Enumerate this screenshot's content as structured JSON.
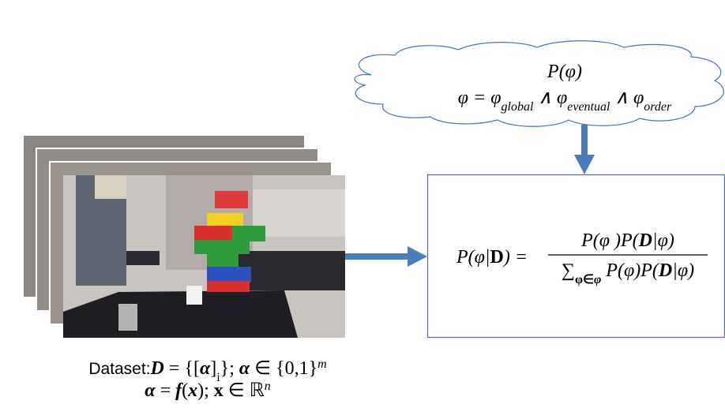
{
  "cloud": {
    "line1": "P(φ)",
    "line2": [
      "φ = φ",
      "global",
      " ∧ φ",
      "eventual",
      " ∧ φ",
      "order"
    ]
  },
  "posterior": {
    "lhs": [
      "P(φ|",
      "D",
      ") ="
    ],
    "numerator": [
      "P(φ )P(",
      "D",
      "|φ)"
    ],
    "denominator": [
      "∑",
      "φ∈",
      "φ",
      " P(φ)P(",
      "D",
      "|φ)"
    ]
  },
  "caption": {
    "line1": [
      "Dataset:",
      "D",
      " = {[",
      "α",
      "]",
      "i",
      "}; ",
      "α",
      " ∈ {0,1}",
      "m"
    ],
    "line2": [
      "α",
      " = ",
      "f",
      "(",
      "x",
      "); ",
      "x",
      " ∈ ℝ",
      "n"
    ]
  }
}
